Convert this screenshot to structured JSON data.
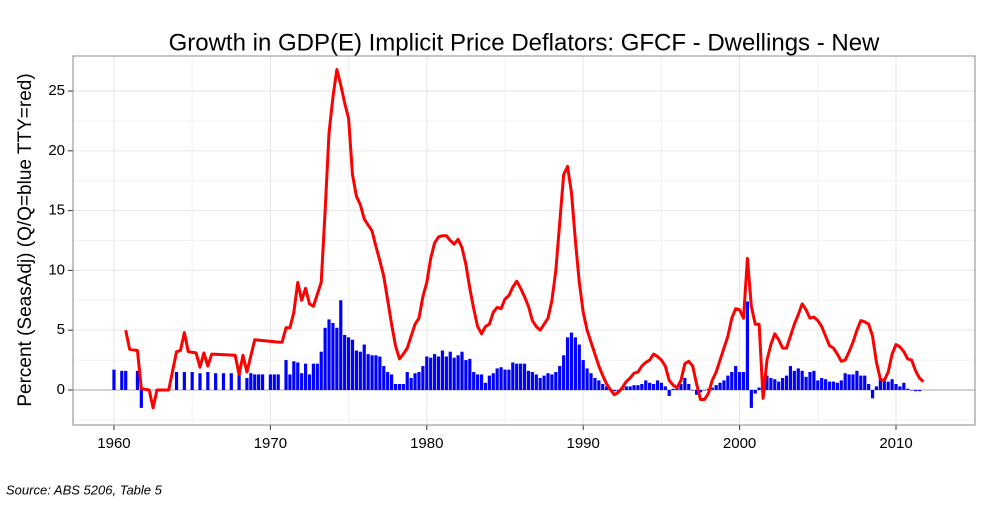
{
  "chart_data": {
    "type": "bar-line",
    "title": "Growth in GDP(E) Implicit Price Deflators: GFCF - Dwellings - New",
    "ylabel": "Percent (SeasAdj) (Q/Q=blue TTY=red)",
    "source": "Source: ABS 5206, Table 5",
    "xlim": [
      1957.38,
      2015.05
    ],
    "ylim": [
      -2.93,
      27.93
    ],
    "xticks": [
      1960,
      1970,
      1980,
      1990,
      2000,
      2010
    ],
    "yticks": [
      0,
      5,
      10,
      15,
      20,
      25
    ],
    "xminor": [
      1965,
      1975,
      1985,
      1995,
      2005
    ],
    "yminor": [
      -2.5,
      2.5,
      7.5,
      12.5,
      17.5,
      22.5
    ],
    "grid": true,
    "series": [
      {
        "kind": "bar",
        "color": "#0000ff",
        "x": [
          1960,
          1960.5,
          1960.75,
          1961.5,
          1961.75,
          1964,
          1964.5,
          1965,
          1965.5,
          1966,
          1966.5,
          1967,
          1967.5,
          1968,
          1968.5,
          1968.75,
          1969,
          1969.25,
          1969.5,
          1970,
          1970.25,
          1970.5,
          1971,
          1971.25,
          1971.5,
          1971.75,
          1972,
          1972.25,
          1972.5,
          1972.75,
          1973,
          1973.25,
          1973.5,
          1973.75,
          1974,
          1974.25,
          1974.5,
          1974.75,
          1975,
          1975.25,
          1975.5,
          1975.75,
          1976,
          1976.25,
          1976.5,
          1976.75,
          1977,
          1977.25,
          1977.5,
          1977.75,
          1978,
          1978.25,
          1978.5,
          1978.75,
          1979,
          1979.25,
          1979.5,
          1979.75,
          1980,
          1980.25,
          1980.5,
          1980.75,
          1981,
          1981.25,
          1981.5,
          1981.75,
          1982,
          1982.25,
          1982.5,
          1982.75,
          1983,
          1983.25,
          1983.5,
          1983.75,
          1984,
          1984.25,
          1984.5,
          1984.75,
          1985,
          1985.25,
          1985.5,
          1985.75,
          1986,
          1986.25,
          1986.5,
          1986.75,
          1987,
          1987.25,
          1987.5,
          1987.75,
          1988,
          1988.25,
          1988.5,
          1988.75,
          1989,
          1989.25,
          1989.5,
          1989.75,
          1990,
          1990.25,
          1990.5,
          1990.75,
          1991,
          1991.25,
          1991.5,
          1991.75,
          1992,
          1992.25,
          1992.5,
          1992.75,
          1993,
          1993.25,
          1993.5,
          1993.75,
          1994,
          1994.25,
          1994.5,
          1994.75,
          1995,
          1995.25,
          1995.5,
          1995.75,
          1996,
          1996.25,
          1996.5,
          1996.75,
          1997,
          1997.25,
          1997.5,
          1997.75,
          1998,
          1998.25,
          1998.5,
          1998.75,
          1999,
          1999.25,
          1999.5,
          1999.75,
          2000,
          2000.25,
          2000.5,
          2000.75,
          2001,
          2001.25,
          2001.5,
          2001.75,
          2002,
          2002.25,
          2002.5,
          2002.75,
          2003,
          2003.25,
          2003.5,
          2003.75,
          2004,
          2004.25,
          2004.5,
          2004.75,
          2005,
          2005.25,
          2005.5,
          2005.75,
          2006,
          2006.25,
          2006.5,
          2006.75,
          2007,
          2007.25,
          2007.5,
          2007.75,
          2008,
          2008.25,
          2008.5,
          2008.75,
          2009,
          2009.25,
          2009.5,
          2009.75,
          2010,
          2010.25,
          2010.5,
          2010.75,
          2011,
          2011.25,
          2011.5
        ],
        "values": [
          1.7,
          1.6,
          1.6,
          1.6,
          -1.5,
          1.5,
          1.5,
          1.5,
          1.4,
          1.5,
          1.4,
          1.4,
          1.4,
          1.4,
          1.0,
          1.4,
          1.3,
          1.3,
          1.3,
          1.3,
          1.3,
          1.3,
          2.5,
          1.3,
          2.4,
          2.3,
          1.4,
          2.2,
          1.3,
          2.2,
          2.2,
          3.2,
          5.2,
          5.9,
          5.6,
          5.2,
          7.5,
          4.6,
          4.4,
          4.2,
          3.3,
          3.2,
          3.8,
          3.0,
          2.9,
          2.9,
          2.8,
          2.0,
          1.5,
          1.3,
          0.5,
          0.5,
          0.5,
          1.5,
          1.0,
          1.4,
          1.5,
          2.0,
          2.8,
          2.7,
          3.0,
          2.8,
          3.3,
          2.8,
          3.2,
          2.7,
          2.9,
          3.2,
          2.5,
          2.6,
          1.5,
          1.3,
          1.3,
          0.6,
          1.2,
          1.4,
          1.8,
          1.9,
          1.7,
          1.7,
          2.3,
          2.2,
          2.2,
          2.2,
          1.6,
          1.5,
          1.3,
          1.0,
          1.2,
          1.4,
          1.3,
          1.5,
          2.0,
          2.9,
          4.4,
          4.8,
          4.4,
          3.8,
          2.5,
          1.8,
          1.4,
          1.0,
          0.8,
          0.5,
          0.3,
          0.1,
          -0.1,
          -0.2,
          0.1,
          0.3,
          0.3,
          0.4,
          0.4,
          0.5,
          0.8,
          0.6,
          0.5,
          0.8,
          0.6,
          0.3,
          -0.5,
          0.1,
          0.2,
          0.5,
          1.0,
          0.5,
          0.0,
          -0.4,
          -0.2,
          0.0,
          0.1,
          0.2,
          0.4,
          0.6,
          0.8,
          1.2,
          1.5,
          2.0,
          1.5,
          1.5,
          7.4,
          -1.5,
          -0.3,
          0.2,
          1.0,
          1.2,
          1.0,
          0.9,
          0.7,
          1.0,
          1.2,
          2.0,
          1.6,
          1.8,
          1.6,
          1.1,
          1.5,
          1.6,
          0.8,
          1.0,
          0.9,
          0.7,
          0.7,
          0.6,
          0.8,
          1.4,
          1.3,
          1.3,
          1.6,
          1.2,
          1.2,
          0.5,
          -0.7,
          0.3,
          1.0,
          0.8,
          0.7,
          0.9,
          0.5,
          0.3,
          0.6,
          0.1,
          0.0,
          -0.1,
          -0.1
        ]
      },
      {
        "kind": "line",
        "color": "#ff0000",
        "x": [
          1960.75,
          1961,
          1961.5,
          1961.75,
          1962.25,
          1962.5,
          1962.75,
          1963.5,
          1964,
          1964.25,
          1964.5,
          1964.75,
          1965.25,
          1965.5,
          1965.75,
          1966,
          1966.25,
          1967.75,
          1968,
          1968.25,
          1968.5,
          1969,
          1970.5,
          1970.75,
          1971,
          1971.25,
          1971.5,
          1971.75,
          1972,
          1972.25,
          1972.5,
          1972.75,
          1973,
          1973.25,
          1973.5,
          1973.75,
          1974,
          1974.25,
          1974.5,
          1974.75,
          1975,
          1975.25,
          1975.5,
          1975.75,
          1976,
          1976.25,
          1976.5,
          1976.75,
          1977,
          1977.25,
          1977.5,
          1977.75,
          1978,
          1978.25,
          1978.5,
          1978.75,
          1979,
          1979.25,
          1979.5,
          1979.75,
          1980,
          1980.25,
          1980.5,
          1980.75,
          1981,
          1981.25,
          1981.5,
          1981.75,
          1982,
          1982.25,
          1982.5,
          1982.75,
          1983,
          1983.25,
          1983.5,
          1983.75,
          1984,
          1984.25,
          1984.5,
          1984.75,
          1985,
          1985.25,
          1985.5,
          1985.75,
          1986,
          1986.25,
          1986.5,
          1986.75,
          1987,
          1987.25,
          1987.5,
          1987.75,
          1988,
          1988.25,
          1988.5,
          1988.75,
          1989,
          1989.25,
          1989.5,
          1989.75,
          1990,
          1990.25,
          1990.5,
          1990.75,
          1991,
          1991.25,
          1991.5,
          1991.75,
          1992,
          1992.25,
          1992.5,
          1992.75,
          1993,
          1993.25,
          1993.5,
          1993.75,
          1994,
          1994.25,
          1994.5,
          1994.75,
          1995,
          1995.25,
          1995.5,
          1995.75,
          1996,
          1996.25,
          1996.5,
          1996.75,
          1997,
          1997.25,
          1997.5,
          1997.75,
          1998,
          1998.25,
          1998.5,
          1998.75,
          1999,
          1999.25,
          1999.5,
          1999.75,
          2000,
          2000.25,
          2000.5,
          2000.75,
          2001,
          2001.25,
          2001.5,
          2001.75,
          2002,
          2002.25,
          2002.5,
          2002.75,
          2003,
          2003.25,
          2003.5,
          2003.75,
          2004,
          2004.25,
          2004.5,
          2004.75,
          2005,
          2005.25,
          2005.5,
          2005.75,
          2006,
          2006.25,
          2006.5,
          2006.75,
          2007,
          2007.25,
          2007.5,
          2007.75,
          2008,
          2008.25,
          2008.5,
          2008.75,
          2009,
          2009.25,
          2009.5,
          2009.75,
          2010,
          2010.25,
          2010.5,
          2010.75,
          2011,
          2011.25,
          2011.5,
          2011.75
        ],
        "values": [
          5.0,
          3.4,
          3.3,
          0.1,
          0.0,
          -1.5,
          0.0,
          0.0,
          3.2,
          3.3,
          4.8,
          3.2,
          3.1,
          1.9,
          3.1,
          2.0,
          3.0,
          2.9,
          1.3,
          2.9,
          1.5,
          4.2,
          4.0,
          4.0,
          5.2,
          5.2,
          6.5,
          9.0,
          7.5,
          8.5,
          7.2,
          7.0,
          8.0,
          9.0,
          15,
          21.5,
          24.5,
          26.8,
          25.5,
          24,
          22.7,
          18,
          16.2,
          15.5,
          14.3,
          13.8,
          13.3,
          12,
          10.8,
          9.5,
          7.5,
          5.5,
          3.7,
          2.6,
          3.0,
          3.5,
          4.5,
          5.5,
          6.0,
          7.8,
          9.0,
          11,
          12.3,
          12.8,
          12.9,
          12.9,
          12.5,
          12.2,
          12.6,
          11.9,
          10.5,
          8.5,
          6.8,
          5.3,
          4.7,
          5.3,
          5.5,
          6.5,
          6.9,
          6.8,
          7.6,
          7.9,
          8.6,
          9.1,
          8.5,
          7.8,
          7.0,
          5.8,
          5.3,
          5.0,
          5.5,
          6.0,
          7.5,
          10,
          14,
          18,
          18.7,
          16.5,
          12.5,
          9.0,
          6.5,
          5.0,
          4.0,
          3.0,
          2.0,
          1.2,
          0.5,
          0.0,
          -0.4,
          -0.2,
          0.2,
          0.7,
          1.0,
          1.4,
          1.5,
          2.0,
          2.3,
          2.5,
          3.0,
          2.8,
          2.5,
          2.0,
          0.8,
          0.4,
          0.2,
          0.8,
          2.2,
          2.4,
          2.0,
          0.5,
          -0.8,
          -0.8,
          -0.3,
          0.8,
          1.5,
          2.5,
          3.5,
          4.5,
          6.0,
          6.8,
          6.7,
          6.0,
          11.0,
          7.0,
          5.5,
          5.5,
          -0.7,
          2.5,
          3.8,
          4.7,
          4.2,
          3.5,
          3.5,
          4.5,
          5.5,
          6.3,
          7.2,
          6.7,
          6.0,
          6.1,
          5.8,
          5.3,
          4.5,
          3.7,
          3.5,
          3.0,
          2.4,
          2.5,
          3.2,
          4.0,
          5.0,
          5.8,
          5.7,
          5.5,
          4.5,
          2.3,
          0.9,
          0.8,
          1.5,
          3.0,
          3.8,
          3.6,
          3.2,
          2.6,
          2.5,
          1.6,
          1.0,
          0.7
        ]
      }
    ]
  }
}
